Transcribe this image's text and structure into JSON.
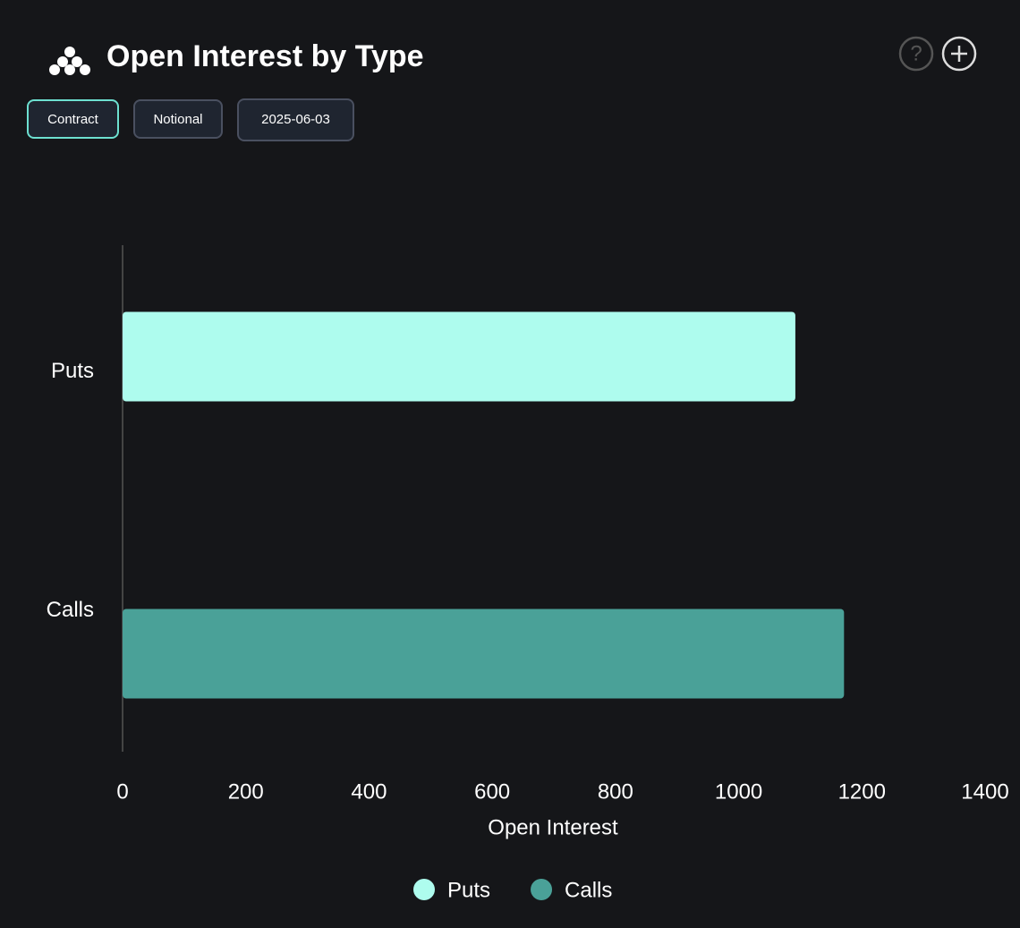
{
  "controls": [
    "Contract",
    "Notional",
    "2025-06-03"
  ],
  "chart_data": {
    "type": "bar",
    "orientation": "horizontal",
    "title": "Open Interest by Type",
    "categories": [
      "Puts",
      "Calls"
    ],
    "values": [
      1092,
      1171
    ],
    "colors": [
      "#aefcee",
      "#4aa198"
    ],
    "xlabel": "Open Interest",
    "xlim": [
      0,
      1400
    ],
    "xticks": [
      0,
      200,
      400,
      600,
      800,
      1000,
      1200,
      1400
    ],
    "legend": "bottom"
  }
}
